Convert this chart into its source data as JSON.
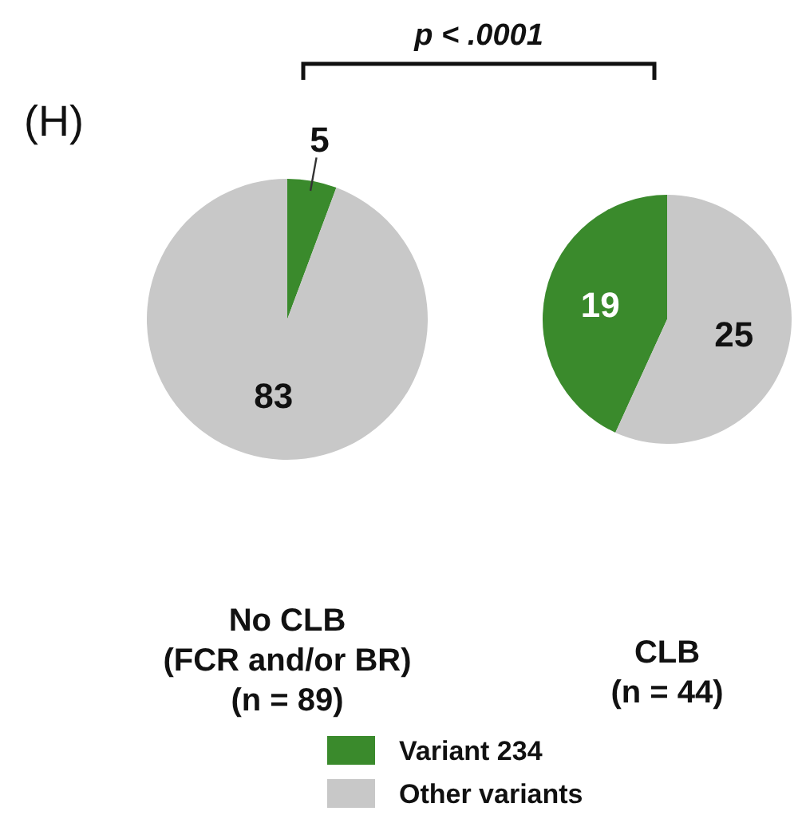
{
  "chart_data": [
    {
      "type": "pie",
      "title": "No CLB (FCR and/or BR)",
      "subtitle": "(n = 89)",
      "categories": [
        "Variant 234",
        "Other variants"
      ],
      "values": [
        5,
        83
      ],
      "colors": [
        "#3a8a2c",
        "#c8c8c8"
      ],
      "data_labels": true,
      "legend": "bottom",
      "annotations": [
        "(H)",
        "p < .0001"
      ]
    },
    {
      "type": "pie",
      "title": "CLB",
      "subtitle": "(n = 44)",
      "categories": [
        null,
        null
      ],
      "values": [
        19,
        25
      ],
      "colors": [
        "#3a8a2c",
        "#c8c8c8"
      ],
      "data_labels": true
    }
  ]
}
